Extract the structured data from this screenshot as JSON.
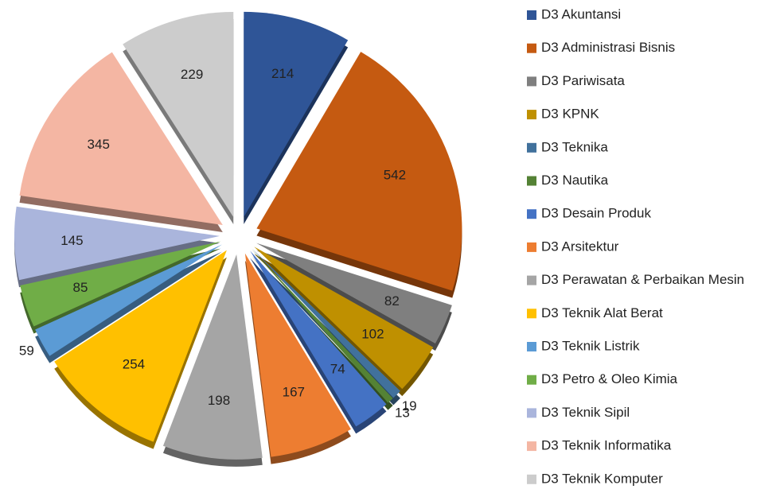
{
  "chart_data": {
    "type": "pie",
    "categories": [
      "D3 Akuntansi",
      "D3 Administrasi Bisnis",
      "D3 Pariwisata",
      "D3 KPNK",
      "D3 Teknika",
      "D3 Nautika",
      "D3 Desain Produk",
      "D3 Arsitektur",
      "D3 Perawatan & Perbaikan Mesin",
      "D3 Teknik Alat Berat",
      "D3 Teknik Listrik",
      "D3 Petro & Oleo Kimia",
      "D3 Teknik Sipil",
      "D3 Teknik Informatika",
      "D3 Teknik Komputer"
    ],
    "values": [
      214,
      542,
      82,
      102,
      19,
      13,
      74,
      167,
      198,
      254,
      59,
      85,
      145,
      345,
      229
    ],
    "colors": [
      "#2f5597",
      "#c55a11",
      "#7f7f7f",
      "#bf9000",
      "#41719c",
      "#548235",
      "#4472c4",
      "#ed7d31",
      "#a5a5a5",
      "#ffc000",
      "#5b9bd5",
      "#70ad47",
      "#aab5dc",
      "#f4b6a3",
      "#cccccc"
    ],
    "legend": "right"
  }
}
